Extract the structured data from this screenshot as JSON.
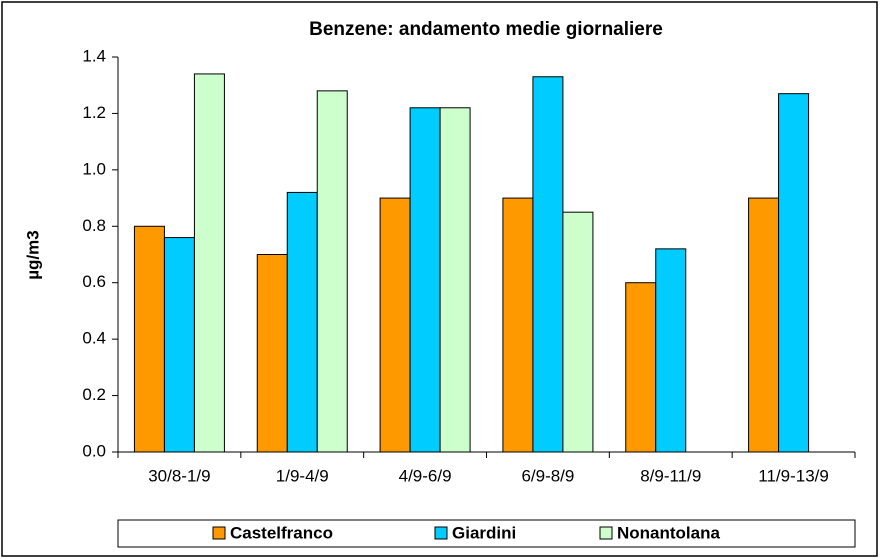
{
  "chart_data": {
    "type": "bar",
    "title": "Benzene: andamento medie  giornaliere",
    "y_label": "µg/m3",
    "categories": [
      "30/8-1/9",
      "1/9-4/9",
      "4/9-6/9",
      "6/9-8/9",
      "8/9-11/9",
      "11/9-13/9"
    ],
    "series": [
      {
        "name": "Castelfranco",
        "color": "#ff9900",
        "values": [
          0.8,
          0.7,
          0.9,
          0.9,
          0.6,
          0.9
        ]
      },
      {
        "name": "Giardini",
        "color": "#00ccff",
        "values": [
          0.76,
          0.92,
          1.22,
          1.33,
          0.72,
          1.27
        ]
      },
      {
        "name": "Nonantolana",
        "color": "#ccffcc",
        "values": [
          1.34,
          1.28,
          1.22,
          0.85,
          null,
          null
        ]
      }
    ],
    "ylim": [
      0,
      1.4
    ],
    "yticks": [
      {
        "value": 0,
        "label": "0.0"
      },
      0.2,
      0.4,
      0.6,
      0.8,
      {
        "value": 1,
        "label": "1.0"
      },
      1.2,
      1.4
    ],
    "grid": false,
    "legend": "bottom"
  }
}
